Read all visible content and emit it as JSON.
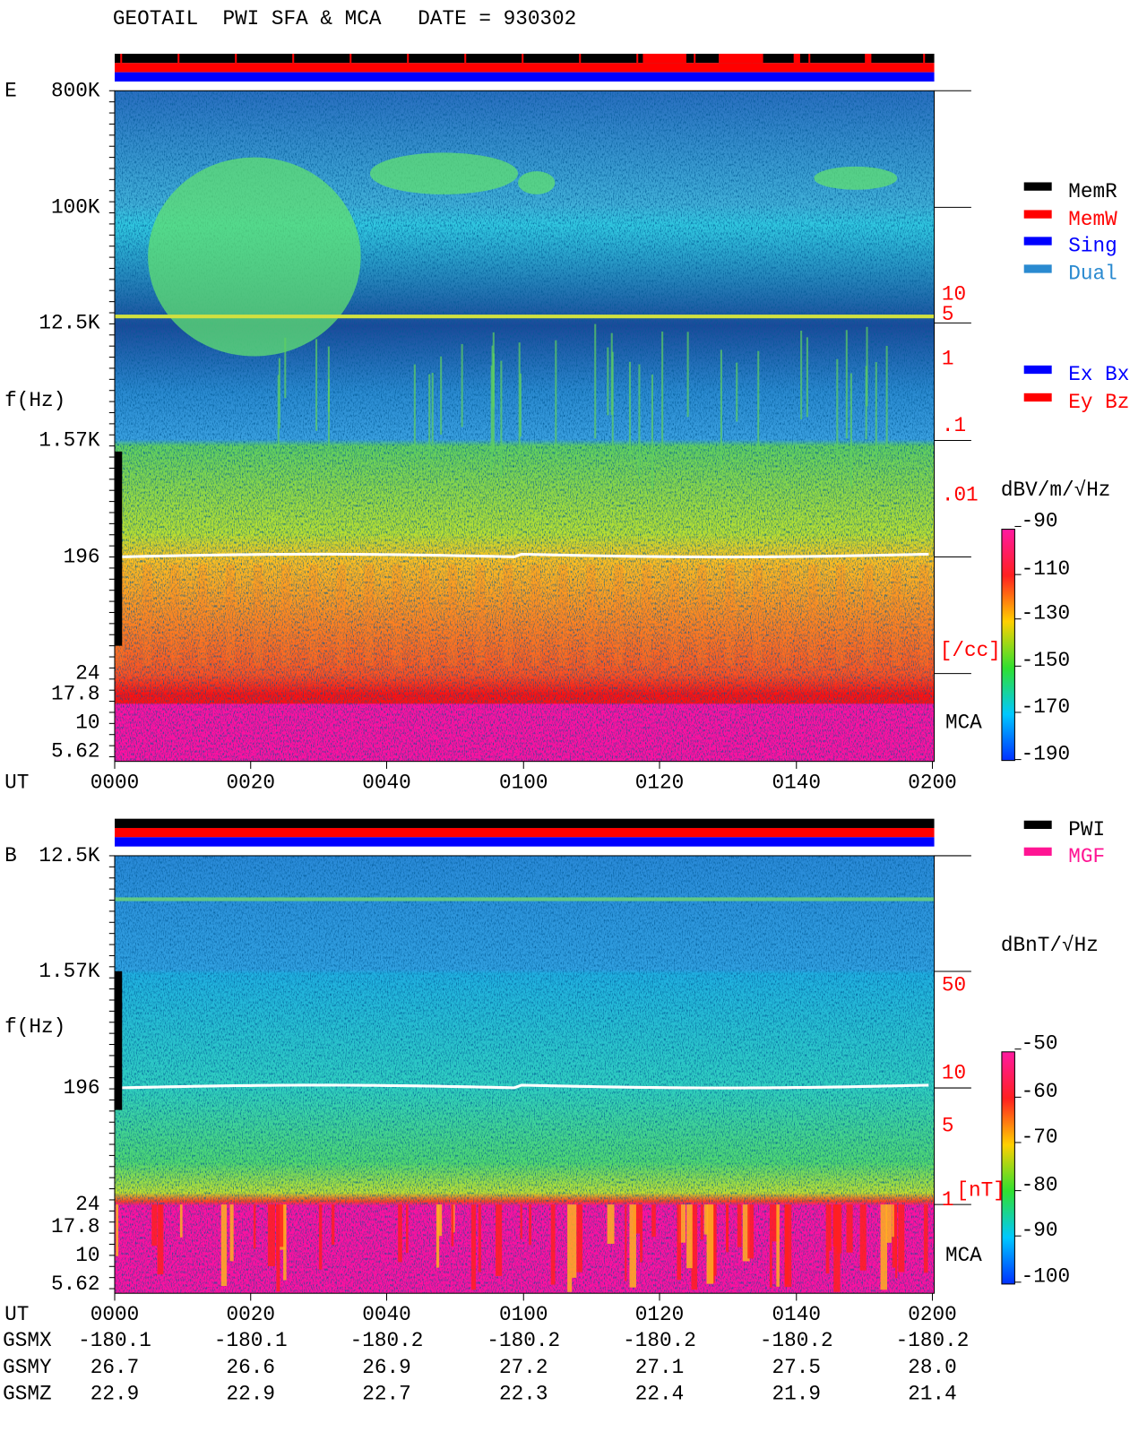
{
  "header": {
    "title": "GEOTAIL  PWI SFA & MCA   DATE = 930302"
  },
  "panels": [
    {
      "label": "E",
      "axis_title": "f(Hz)",
      "freq_labels": [
        "800K",
        "100K",
        "12.5K",
        "1.57K",
        "196",
        "24",
        "17.8",
        "10",
        "5.62"
      ],
      "right_labels": [
        "10",
        "5",
        "1",
        ".1",
        ".01"
      ],
      "right_unit": "[/cc]",
      "mca": "MCA",
      "colorbar": {
        "unit": "dBV/m/√Hz",
        "ticks": [
          "-90",
          "-110",
          "-130",
          "-150",
          "-170",
          "-190"
        ]
      }
    },
    {
      "label": "B",
      "axis_title": "f(Hz)",
      "freq_labels": [
        "12.5K",
        "1.57K",
        "196",
        "24",
        "17.8",
        "10",
        "5.62"
      ],
      "right_labels": [
        "50",
        "10",
        "5",
        "1"
      ],
      "right_unit": "[nT]",
      "mca": "MCA",
      "colorbar": {
        "unit": "dBnT/√Hz",
        "ticks": [
          "-50",
          "-60",
          "-70",
          "-80",
          "-90",
          "-100"
        ]
      }
    }
  ],
  "legends": {
    "mode": [
      "MemR",
      "MemW",
      "Sing",
      "Dual"
    ],
    "antenna": [
      "Ex Bx",
      "Ey Bz"
    ],
    "source": [
      "PWI",
      "MGF"
    ]
  },
  "time_axis": {
    "label": "UT",
    "ticks": [
      "0000",
      "0020",
      "0040",
      "0100",
      "0120",
      "0140",
      "0200"
    ]
  },
  "ephemeris": {
    "rows": [
      {
        "label": "GSMX",
        "values": [
          "-180.1",
          "-180.1",
          "-180.2",
          "-180.2",
          "-180.2",
          "-180.2",
          "-180.2"
        ]
      },
      {
        "label": "GSMY",
        "values": [
          "26.7",
          "26.6",
          "26.9",
          "27.2",
          "27.1",
          "27.5",
          "28.0"
        ]
      },
      {
        "label": "GSMZ",
        "values": [
          "22.9",
          "22.9",
          "22.7",
          "22.3",
          "22.4",
          "21.9",
          "21.4"
        ]
      }
    ]
  }
}
